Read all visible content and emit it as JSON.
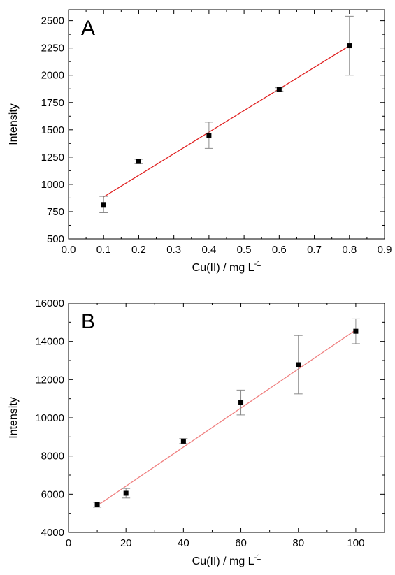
{
  "chart_data": [
    {
      "type": "scatter",
      "panel_label": "A",
      "xlabel": "Cu(II) / mg L",
      "xlabel_superscript": "-1",
      "ylabel": "Intensity",
      "xlim": [
        0.0,
        0.9
      ],
      "ylim": [
        500,
        2600
      ],
      "xticks": [
        0.0,
        0.1,
        0.2,
        0.3,
        0.4,
        0.5,
        0.6,
        0.7,
        0.8,
        0.9
      ],
      "xtick_labels": [
        "0.0",
        "0.1",
        "0.2",
        "0.3",
        "0.4",
        "0.5",
        "0.6",
        "0.7",
        "0.8",
        "0.9"
      ],
      "yticks": [
        500,
        750,
        1000,
        1250,
        1500,
        1750,
        2000,
        2250,
        2500
      ],
      "ytick_labels": [
        "500",
        "750",
        "1000",
        "1250",
        "1500",
        "1750",
        "2000",
        "2250",
        "2500"
      ],
      "grid": false,
      "points": [
        {
          "x": 0.1,
          "y": 815,
          "err": 75
        },
        {
          "x": 0.2,
          "y": 1210,
          "err": 20
        },
        {
          "x": 0.4,
          "y": 1450,
          "err": 120
        },
        {
          "x": 0.6,
          "y": 1870,
          "err": 15
        },
        {
          "x": 0.8,
          "y": 2270,
          "err": 270
        }
      ],
      "fit_line": {
        "x": [
          0.1,
          0.8
        ],
        "y": [
          885,
          2270
        ]
      },
      "colors": {
        "fit": "#e02020",
        "marker": "#000000",
        "errorbar": "#8a8a8a"
      }
    },
    {
      "type": "scatter",
      "panel_label": "B",
      "xlabel": "Cu(II) / mg L",
      "xlabel_superscript": "-1",
      "ylabel": "Intensity",
      "xlim": [
        0,
        110
      ],
      "ylim": [
        4000,
        16000
      ],
      "xticks": [
        0,
        20,
        40,
        60,
        80,
        100
      ],
      "xtick_labels": [
        "0",
        "20",
        "40",
        "60",
        "80",
        "100"
      ],
      "yticks": [
        4000,
        6000,
        8000,
        10000,
        12000,
        14000,
        16000
      ],
      "ytick_labels": [
        "4000",
        "6000",
        "8000",
        "10000",
        "12000",
        "14000",
        "16000"
      ],
      "grid": false,
      "points": [
        {
          "x": 10,
          "y": 5450,
          "err": 130
        },
        {
          "x": 20,
          "y": 6050,
          "err": 250
        },
        {
          "x": 40,
          "y": 8780,
          "err": 130
        },
        {
          "x": 60,
          "y": 10800,
          "err": 650
        },
        {
          "x": 80,
          "y": 12780,
          "err": 1530
        },
        {
          "x": 100,
          "y": 14530,
          "err": 650
        }
      ],
      "fit_line": {
        "x": [
          10,
          100
        ],
        "y": [
          5400,
          14600
        ]
      },
      "colors": {
        "fit": "#f08080",
        "marker": "#000000",
        "errorbar": "#8a8a8a"
      }
    }
  ]
}
